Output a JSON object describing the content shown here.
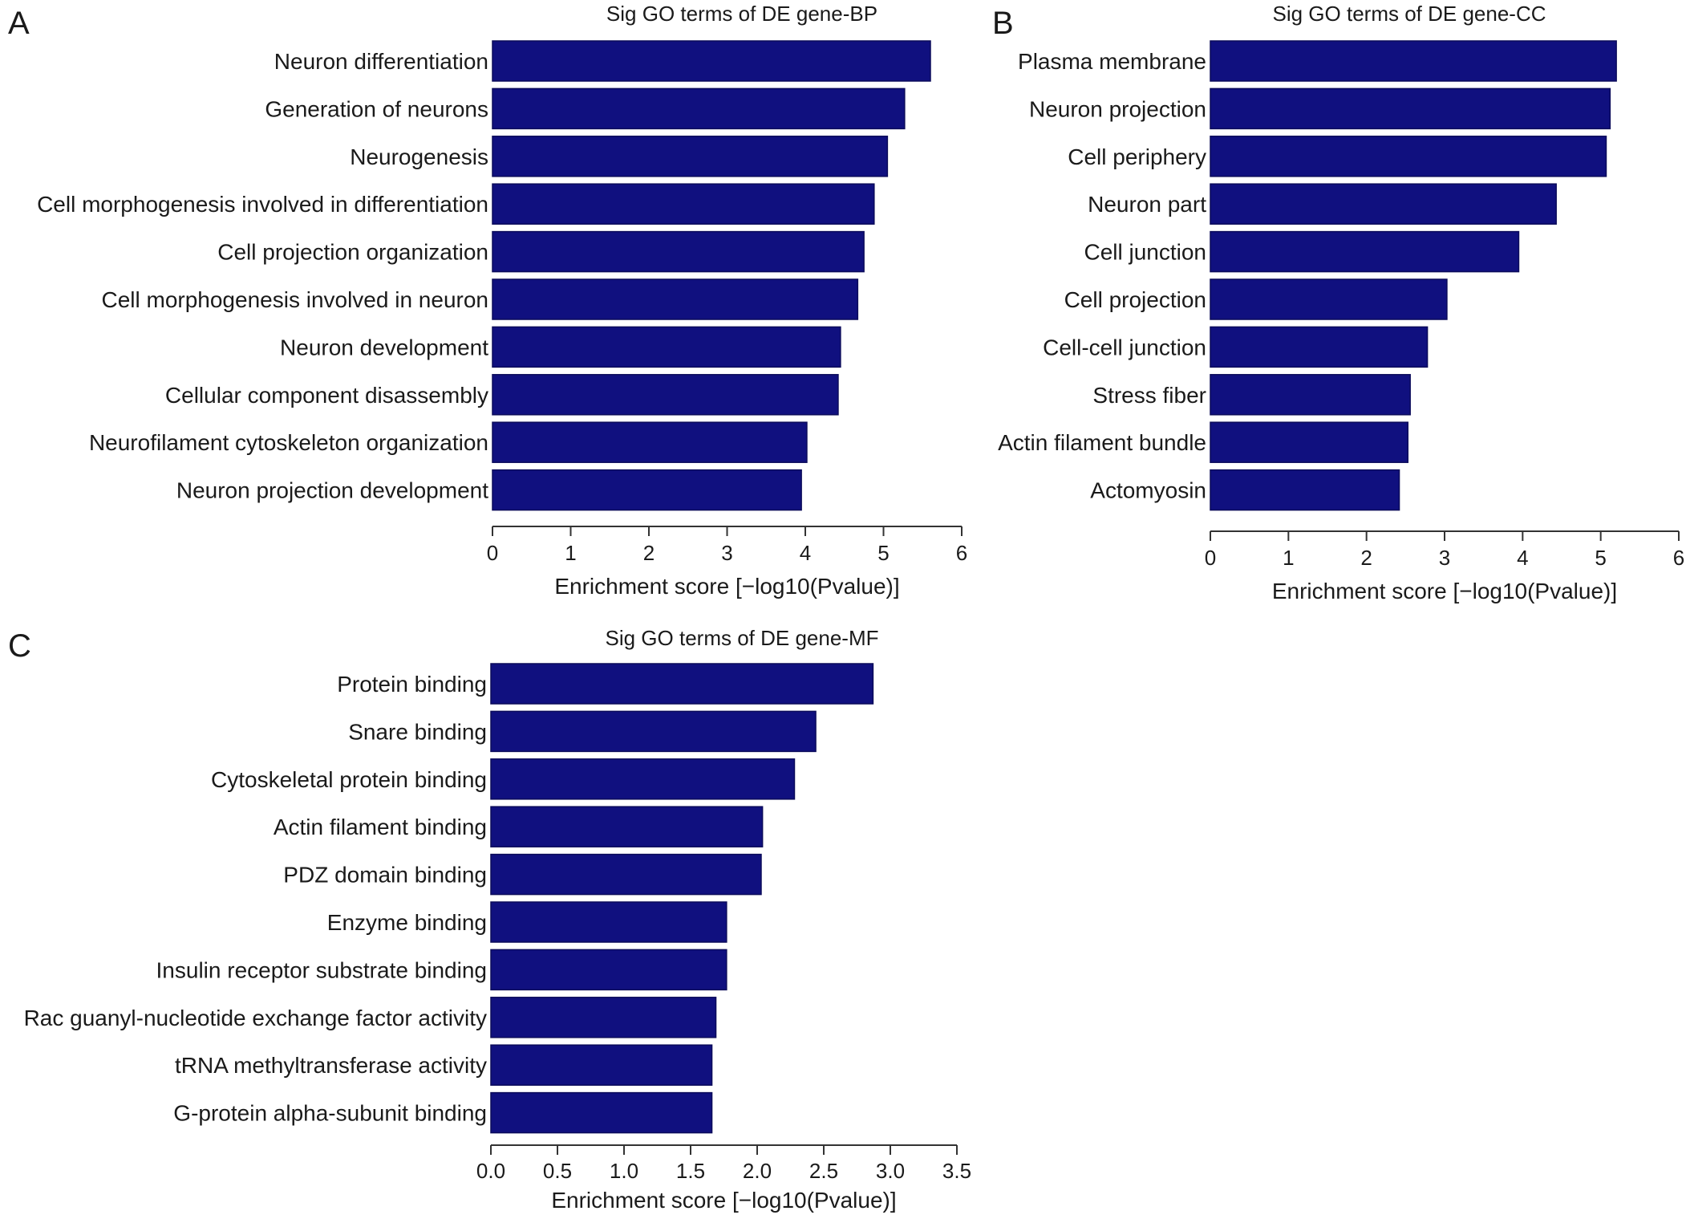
{
  "chart_data": [
    {
      "type": "bar",
      "orientation": "horizontal",
      "panel_label": "A",
      "title": "Sig GO terms of DE gene-BP",
      "xlabel": "Enrichment score [−log10(Pvalue)]",
      "ylabel": "",
      "xlim": [
        0,
        6
      ],
      "xticks": [
        0,
        1,
        2,
        3,
        4,
        5,
        6
      ],
      "xtick_labels": [
        "0",
        "1",
        "2",
        "3",
        "4",
        "5",
        "6"
      ],
      "bar_color": "#10107f",
      "grid": false,
      "categories": [
        "Neuron differentiation",
        "Generation of neurons",
        "Neurogenesis",
        "Cell morphogenesis involved in differentiation",
        "Cell projection organization",
        "Cell morphogenesis involved in neuron",
        "Neuron development",
        "Cellular component disassembly",
        "Neurofilament cytoskeleton organization",
        "Neuron projection development"
      ],
      "values": [
        5.6,
        5.27,
        5.05,
        4.88,
        4.75,
        4.67,
        4.45,
        4.42,
        4.02,
        3.95
      ]
    },
    {
      "type": "bar",
      "orientation": "horizontal",
      "panel_label": "B",
      "title": "Sig GO terms of DE gene-CC",
      "xlabel": "Enrichment score [−log10(Pvalue)]",
      "ylabel": "",
      "xlim": [
        0,
        6
      ],
      "xticks": [
        0,
        1,
        2,
        3,
        4,
        5,
        6
      ],
      "xtick_labels": [
        "0",
        "1",
        "2",
        "3",
        "4",
        "5",
        "6"
      ],
      "bar_color": "#10107f",
      "grid": false,
      "categories": [
        "Plasma membrane",
        "Neuron projection",
        "Cell periphery",
        "Neuron part",
        "Cell junction",
        "Cell projection",
        "Cell-cell junction",
        "Stress fiber",
        "Actin filament bundle",
        "Actomyosin"
      ],
      "values": [
        5.2,
        5.12,
        5.07,
        4.43,
        3.95,
        3.03,
        2.78,
        2.56,
        2.53,
        2.42
      ]
    },
    {
      "type": "bar",
      "orientation": "horizontal",
      "panel_label": "C",
      "title": "Sig GO terms of DE gene-MF",
      "xlabel": "Enrichment score [−log10(Pvalue)]",
      "ylabel": "",
      "xlim": [
        0,
        3.5
      ],
      "xticks": [
        0,
        0.5,
        1,
        1.5,
        2,
        2.5,
        3,
        3.5
      ],
      "xtick_labels": [
        "0.0",
        "0.5",
        "1.0",
        "1.5",
        "2.0",
        "2.5",
        "3.0",
        "3.5"
      ],
      "bar_color": "#10107f",
      "grid": false,
      "categories": [
        "Protein binding",
        "Snare binding",
        "Cytoskeletal protein binding",
        "Actin filament binding",
        "PDZ domain binding",
        "Enzyme binding",
        "Insulin receptor substrate binding",
        "Rac guanyl-nucleotide exchange factor activity",
        "tRNA methyltransferase activity",
        "G-protein alpha-subunit binding"
      ],
      "values": [
        2.87,
        2.44,
        2.28,
        2.04,
        2.03,
        1.77,
        1.77,
        1.69,
        1.66,
        1.66
      ]
    }
  ]
}
